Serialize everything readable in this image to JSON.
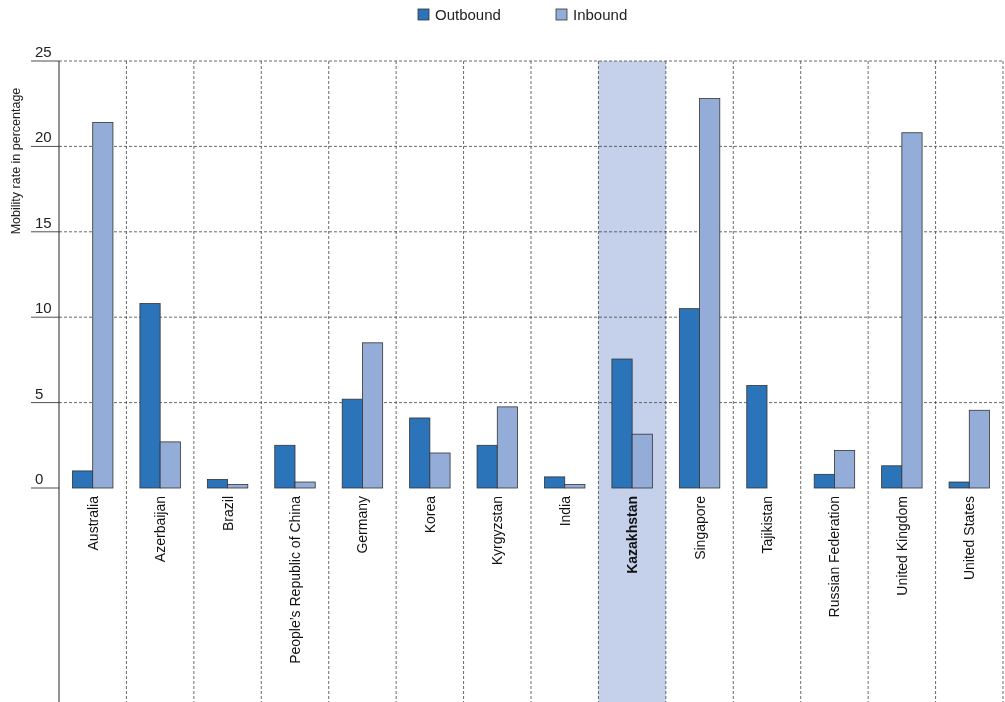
{
  "chart_data": {
    "type": "bar",
    "ylabel": "Mobility rate in percentage",
    "categories": [
      "Australia",
      "Azerbaijan",
      "Brazil",
      "People’s Republic of China",
      "Germany",
      "Korea",
      "Kyrgyzstan",
      "India",
      "Kazakhstan",
      "Singapore",
      "Tajikistan",
      "Russian Federation",
      "United Kingdom",
      "United States"
    ],
    "series": [
      {
        "name": "Outbound",
        "color": "#2b74b9",
        "values": [
          1.0,
          10.8,
          0.5,
          2.5,
          5.2,
          4.1,
          2.5,
          0.65,
          7.55,
          10.5,
          6.0,
          0.8,
          1.3,
          0.35
        ]
      },
      {
        "name": "Inbound",
        "color": "#94acd8",
        "values": [
          21.4,
          2.7,
          0.2,
          0.35,
          8.5,
          2.05,
          4.75,
          0.2,
          3.15,
          22.8,
          null,
          2.2,
          20.8,
          4.55
        ]
      }
    ],
    "ylim": [
      0,
      25
    ],
    "yticks": [
      0,
      5,
      10,
      15,
      20,
      25
    ],
    "grid": true,
    "legend": "top",
    "bands": [
      {
        "axis": "x",
        "from": "Kazakhstan",
        "to": "Kazakhstan",
        "color": "#c5d1ea"
      }
    ]
  }
}
